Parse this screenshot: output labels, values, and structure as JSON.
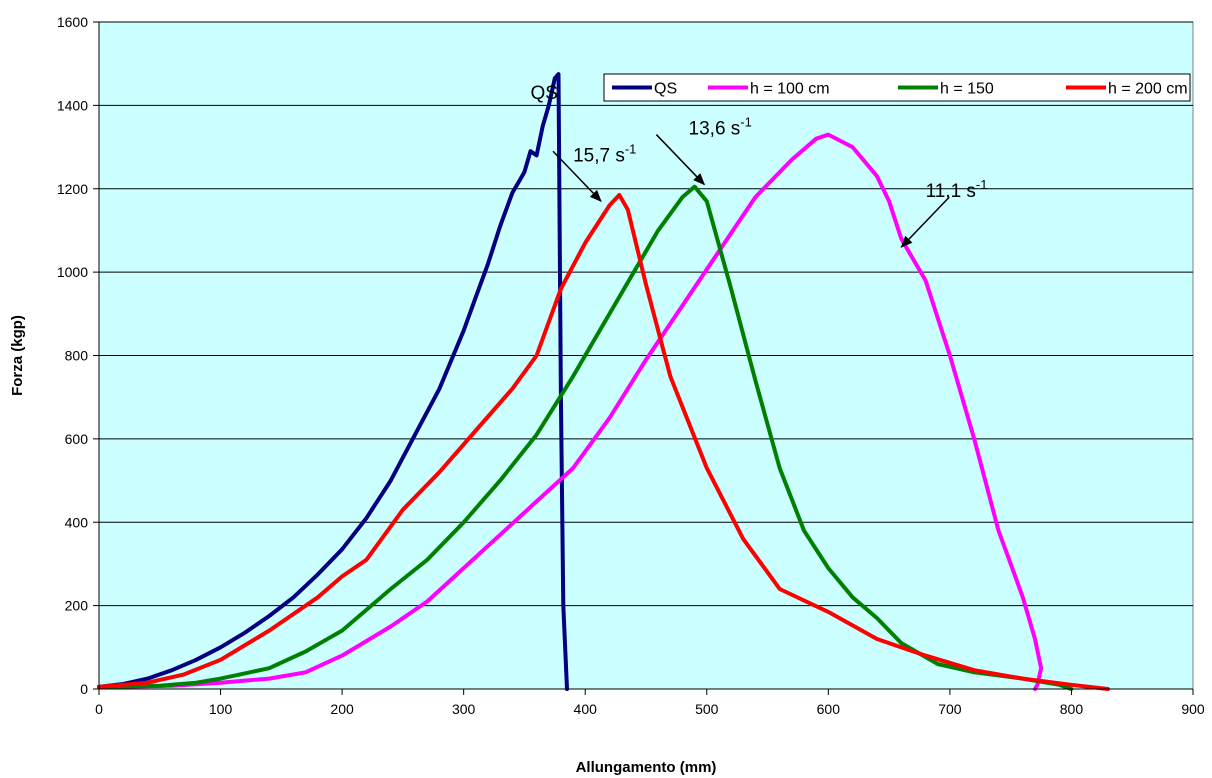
{
  "chart_data": {
    "type": "line",
    "title": "",
    "xlabel": "Allungamento (mm)",
    "ylabel": "Forza (kgp)",
    "xlim": [
      0,
      900
    ],
    "ylim": [
      0,
      1600
    ],
    "xticks": [
      0,
      100,
      200,
      300,
      400,
      500,
      600,
      700,
      800,
      900
    ],
    "yticks": [
      0,
      200,
      400,
      600,
      800,
      1000,
      1200,
      1400,
      1600
    ],
    "grid": "horizontal",
    "plot_background": "#ccffff",
    "legend": {
      "placement": "top-right"
    },
    "series": [
      {
        "name": "QS",
        "color": "#000080",
        "x": [
          0,
          20,
          40,
          60,
          80,
          100,
          120,
          140,
          160,
          180,
          200,
          220,
          240,
          260,
          280,
          300,
          310,
          320,
          330,
          340,
          345,
          350,
          355,
          360,
          365,
          370,
          375,
          378,
          380,
          382,
          385
        ],
        "y": [
          5,
          12,
          25,
          45,
          70,
          100,
          135,
          175,
          220,
          275,
          335,
          410,
          500,
          610,
          720,
          860,
          940,
          1020,
          1110,
          1190,
          1215,
          1240,
          1290,
          1280,
          1350,
          1400,
          1465,
          1475,
          700,
          200,
          0
        ]
      },
      {
        "name": "h = 100 cm",
        "color": "#ff00ff",
        "x": [
          0,
          60,
          100,
          140,
          170,
          200,
          240,
          270,
          300,
          330,
          360,
          390,
          420,
          450,
          480,
          510,
          540,
          570,
          590,
          600,
          620,
          640,
          650,
          660,
          680,
          700,
          720,
          740,
          750,
          760,
          770,
          775,
          772,
          770
        ],
        "y": [
          5,
          8,
          15,
          25,
          40,
          80,
          150,
          210,
          290,
          370,
          450,
          530,
          650,
          790,
          920,
          1050,
          1180,
          1270,
          1320,
          1330,
          1300,
          1230,
          1170,
          1080,
          980,
          800,
          600,
          380,
          300,
          220,
          120,
          50,
          10,
          0
        ]
      },
      {
        "name": "h = 150",
        "color": "#008000",
        "x": [
          0,
          50,
          80,
          100,
          140,
          170,
          200,
          240,
          270,
          300,
          330,
          360,
          390,
          420,
          440,
          460,
          480,
          490,
          500,
          520,
          540,
          560,
          580,
          600,
          620,
          640,
          660,
          690,
          720,
          760,
          790,
          800
        ],
        "y": [
          5,
          8,
          15,
          25,
          50,
          90,
          140,
          240,
          310,
          400,
          500,
          610,
          750,
          900,
          1000,
          1100,
          1180,
          1205,
          1170,
          960,
          740,
          530,
          380,
          290,
          220,
          170,
          110,
          60,
          40,
          25,
          10,
          0
        ]
      },
      {
        "name": "h = 200 cm",
        "color": "#ff0000",
        "x": [
          0,
          40,
          70,
          100,
          140,
          180,
          200,
          220,
          250,
          280,
          310,
          340,
          360,
          380,
          400,
          420,
          428,
          435,
          450,
          470,
          500,
          530,
          560,
          600,
          640,
          680,
          720,
          760,
          800,
          830
        ],
        "y": [
          5,
          15,
          35,
          70,
          140,
          220,
          270,
          310,
          430,
          520,
          620,
          720,
          800,
          960,
          1070,
          1160,
          1185,
          1150,
          970,
          750,
          530,
          360,
          240,
          185,
          120,
          80,
          45,
          25,
          10,
          0
        ]
      }
    ],
    "annotations": [
      {
        "label": "QS",
        "sup": "",
        "x": 355,
        "y": 1415
      },
      {
        "label": "15,7 s",
        "sup": "-1",
        "x": 390,
        "y": 1265,
        "arrow_to": [
          413,
          1170
        ]
      },
      {
        "label": "13,6 s",
        "sup": "-1",
        "x": 485,
        "y": 1330,
        "arrow_to": [
          498,
          1210
        ]
      },
      {
        "label": "11,1 s",
        "sup": "-1",
        "x": 680,
        "y": 1180,
        "arrow_to": [
          660,
          1060
        ]
      }
    ]
  }
}
